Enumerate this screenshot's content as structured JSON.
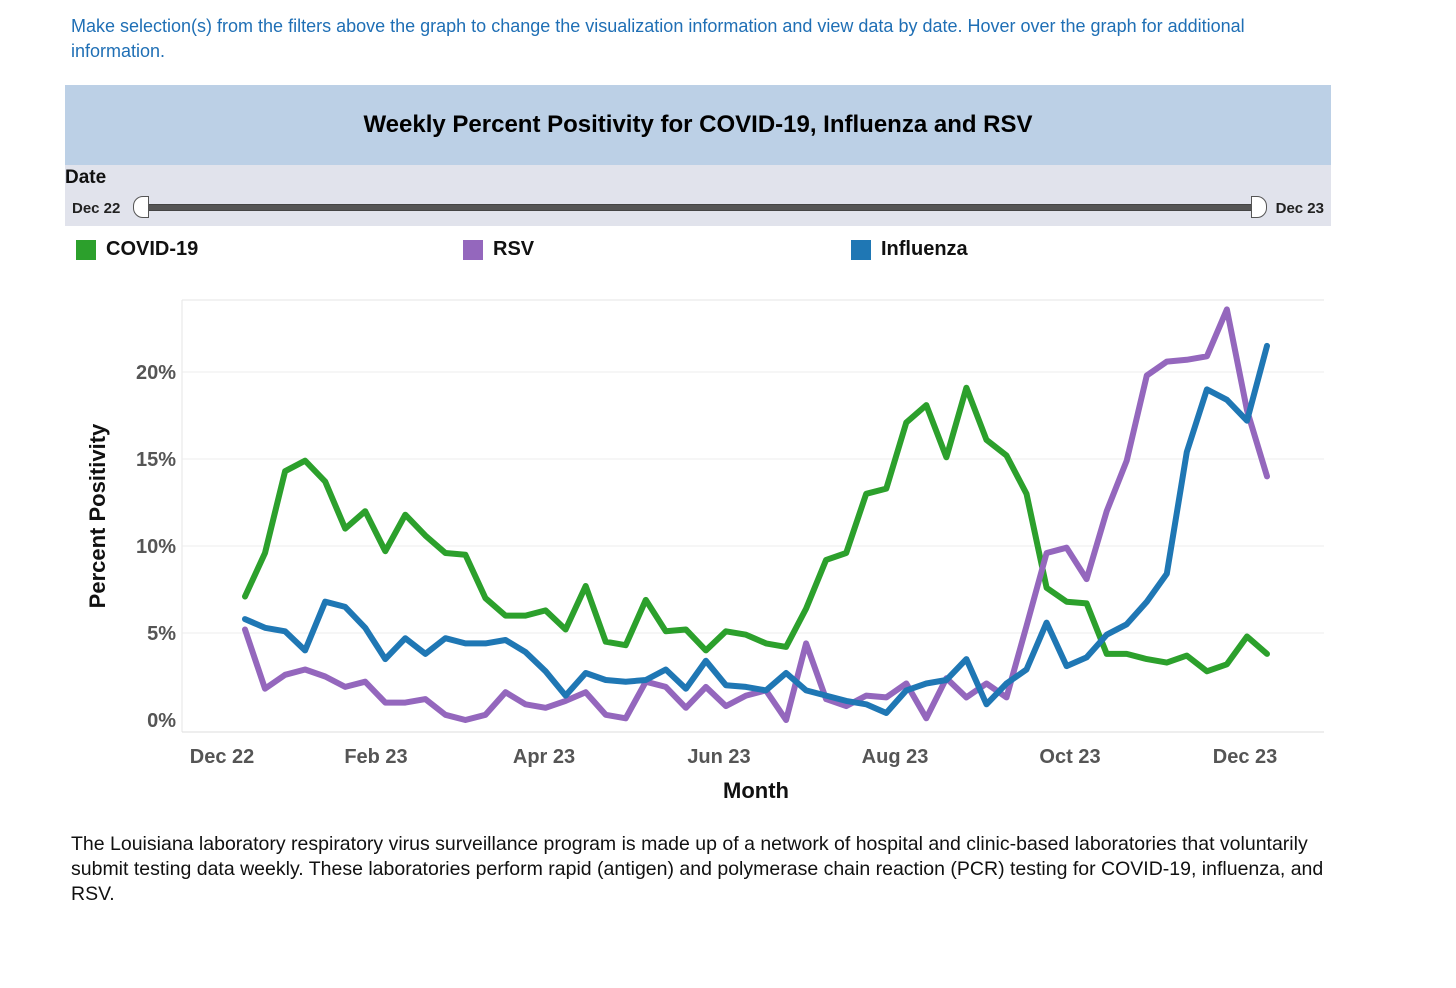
{
  "intro_text": "Make selection(s) from the filters above the graph to change the visualization information and view data by date. Hover over the graph for additional information.",
  "filter": {
    "label": "Date",
    "start_label": "Dec 22",
    "end_label": "Dec 23"
  },
  "legend": [
    {
      "label": "COVID-19",
      "color": "#2ca02c"
    },
    {
      "label": "RSV",
      "color": "#9467bd"
    },
    {
      "label": "Influenza",
      "color": "#1f77b4"
    }
  ],
  "description": "The Louisiana laboratory respiratory virus surveillance program is made up of a network of hospital and clinic-based laboratories that voluntarily submit testing data weekly. These laboratories perform rapid (antigen) and polymerase chain reaction (PCR) testing for COVID-19, influenza, and RSV.",
  "chart_data": {
    "type": "line",
    "title": "Weekly Percent Positivity for COVID-19, Influenza and RSV",
    "xlabel": "Month",
    "ylabel": "Percent Positivity",
    "x_ticks": [
      "Dec 22",
      "Feb 23",
      "Apr 23",
      "Jun 23",
      "Aug 23",
      "Oct 23",
      "Dec 23"
    ],
    "y_ticks": [
      "0%",
      "5%",
      "10%",
      "15%",
      "20%"
    ],
    "ylim": [
      0,
      25
    ],
    "grid": "horizontal",
    "legend_position": "top",
    "x": [
      "2022-12-17",
      "2022-12-24",
      "2022-12-31",
      "2023-01-07",
      "2023-01-14",
      "2023-01-21",
      "2023-01-28",
      "2023-02-04",
      "2023-02-11",
      "2023-02-18",
      "2023-02-25",
      "2023-03-04",
      "2023-03-11",
      "2023-03-18",
      "2023-03-25",
      "2023-04-01",
      "2023-04-08",
      "2023-04-15",
      "2023-04-22",
      "2023-04-29",
      "2023-05-06",
      "2023-05-13",
      "2023-05-20",
      "2023-05-27",
      "2023-06-03",
      "2023-06-10",
      "2023-06-17",
      "2023-06-24",
      "2023-07-01",
      "2023-07-08",
      "2023-07-15",
      "2023-07-22",
      "2023-07-29",
      "2023-08-05",
      "2023-08-12",
      "2023-08-19",
      "2023-08-26",
      "2023-09-02",
      "2023-09-09",
      "2023-09-16",
      "2023-09-23",
      "2023-09-30",
      "2023-10-07",
      "2023-10-14",
      "2023-10-21",
      "2023-10-28",
      "2023-11-04",
      "2023-11-11",
      "2023-11-18",
      "2023-11-25",
      "2023-12-02",
      "2023-12-09"
    ],
    "series": [
      {
        "name": "COVID-19",
        "color": "#2ca02c",
        "values": [
          7.1,
          9.6,
          14.3,
          14.9,
          13.7,
          11.0,
          12.0,
          9.7,
          11.8,
          10.6,
          9.6,
          9.5,
          7.0,
          6.0,
          6.0,
          6.3,
          5.2,
          7.7,
          4.5,
          4.3,
          6.9,
          5.1,
          5.2,
          4.0,
          5.1,
          4.9,
          4.4,
          4.2,
          6.4,
          9.2,
          9.6,
          13.0,
          13.3,
          17.1,
          18.1,
          15.1,
          19.1,
          16.1,
          15.2,
          13.0,
          7.6,
          6.8,
          6.7,
          3.8,
          3.8,
          3.5,
          3.3,
          3.7,
          2.8,
          3.2,
          4.8,
          3.8
        ]
      },
      {
        "name": "RSV",
        "color": "#9467bd",
        "values": [
          5.2,
          1.8,
          2.6,
          2.9,
          2.5,
          1.9,
          2.2,
          1.0,
          1.0,
          1.2,
          0.3,
          0.0,
          0.3,
          1.6,
          0.9,
          0.7,
          1.1,
          1.6,
          0.3,
          0.1,
          2.2,
          1.9,
          0.7,
          1.9,
          0.8,
          1.4,
          1.7,
          0.0,
          4.4,
          1.2,
          0.8,
          1.4,
          1.3,
          2.1,
          0.1,
          2.4,
          1.3,
          2.1,
          1.3,
          5.4,
          9.6,
          9.9,
          8.1,
          12.0,
          14.9,
          19.8,
          20.6,
          20.7,
          20.9,
          23.6,
          17.8,
          14.0
        ]
      },
      {
        "name": "Influenza",
        "color": "#1f77b4",
        "values": [
          5.8,
          5.3,
          5.1,
          4.0,
          6.8,
          6.5,
          5.3,
          3.5,
          4.7,
          3.8,
          4.7,
          4.4,
          4.4,
          4.6,
          3.9,
          2.8,
          1.4,
          2.7,
          2.3,
          2.2,
          2.3,
          2.9,
          1.8,
          3.4,
          2.0,
          1.9,
          1.7,
          2.7,
          1.7,
          1.4,
          1.1,
          0.9,
          0.4,
          1.7,
          2.1,
          2.3,
          3.5,
          0.9,
          2.1,
          2.9,
          5.6,
          3.1,
          3.6,
          4.9,
          5.5,
          6.8,
          8.4,
          15.4,
          19.0,
          18.4,
          17.2,
          21.5
        ]
      }
    ]
  }
}
